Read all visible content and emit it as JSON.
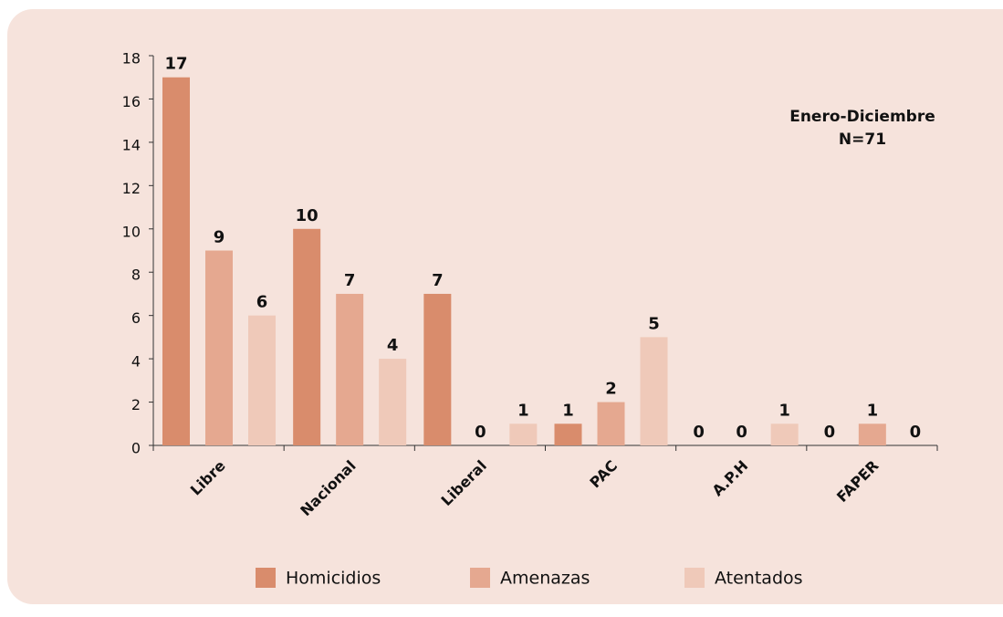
{
  "chart_data": {
    "type": "bar",
    "categories": [
      "Libre",
      "Nacional",
      "Liberal",
      "PAC",
      "A.P.H",
      "FAPER"
    ],
    "series": [
      {
        "name": "Homicidios",
        "color": "#d98c6c",
        "values": [
          17,
          10,
          7,
          1,
          0,
          0
        ]
      },
      {
        "name": "Amenazas",
        "color": "#e5a890",
        "values": [
          9,
          7,
          0,
          2,
          0,
          1
        ]
      },
      {
        "name": "Atentados",
        "color": "#efc9b9",
        "values": [
          6,
          4,
          1,
          5,
          1,
          0
        ]
      }
    ],
    "ylim": [
      0,
      18
    ],
    "yticks": [
      0,
      2,
      4,
      6,
      8,
      10,
      12,
      14,
      16,
      18
    ],
    "annotations": [
      "Enero-Diciembre",
      "N=71"
    ]
  }
}
